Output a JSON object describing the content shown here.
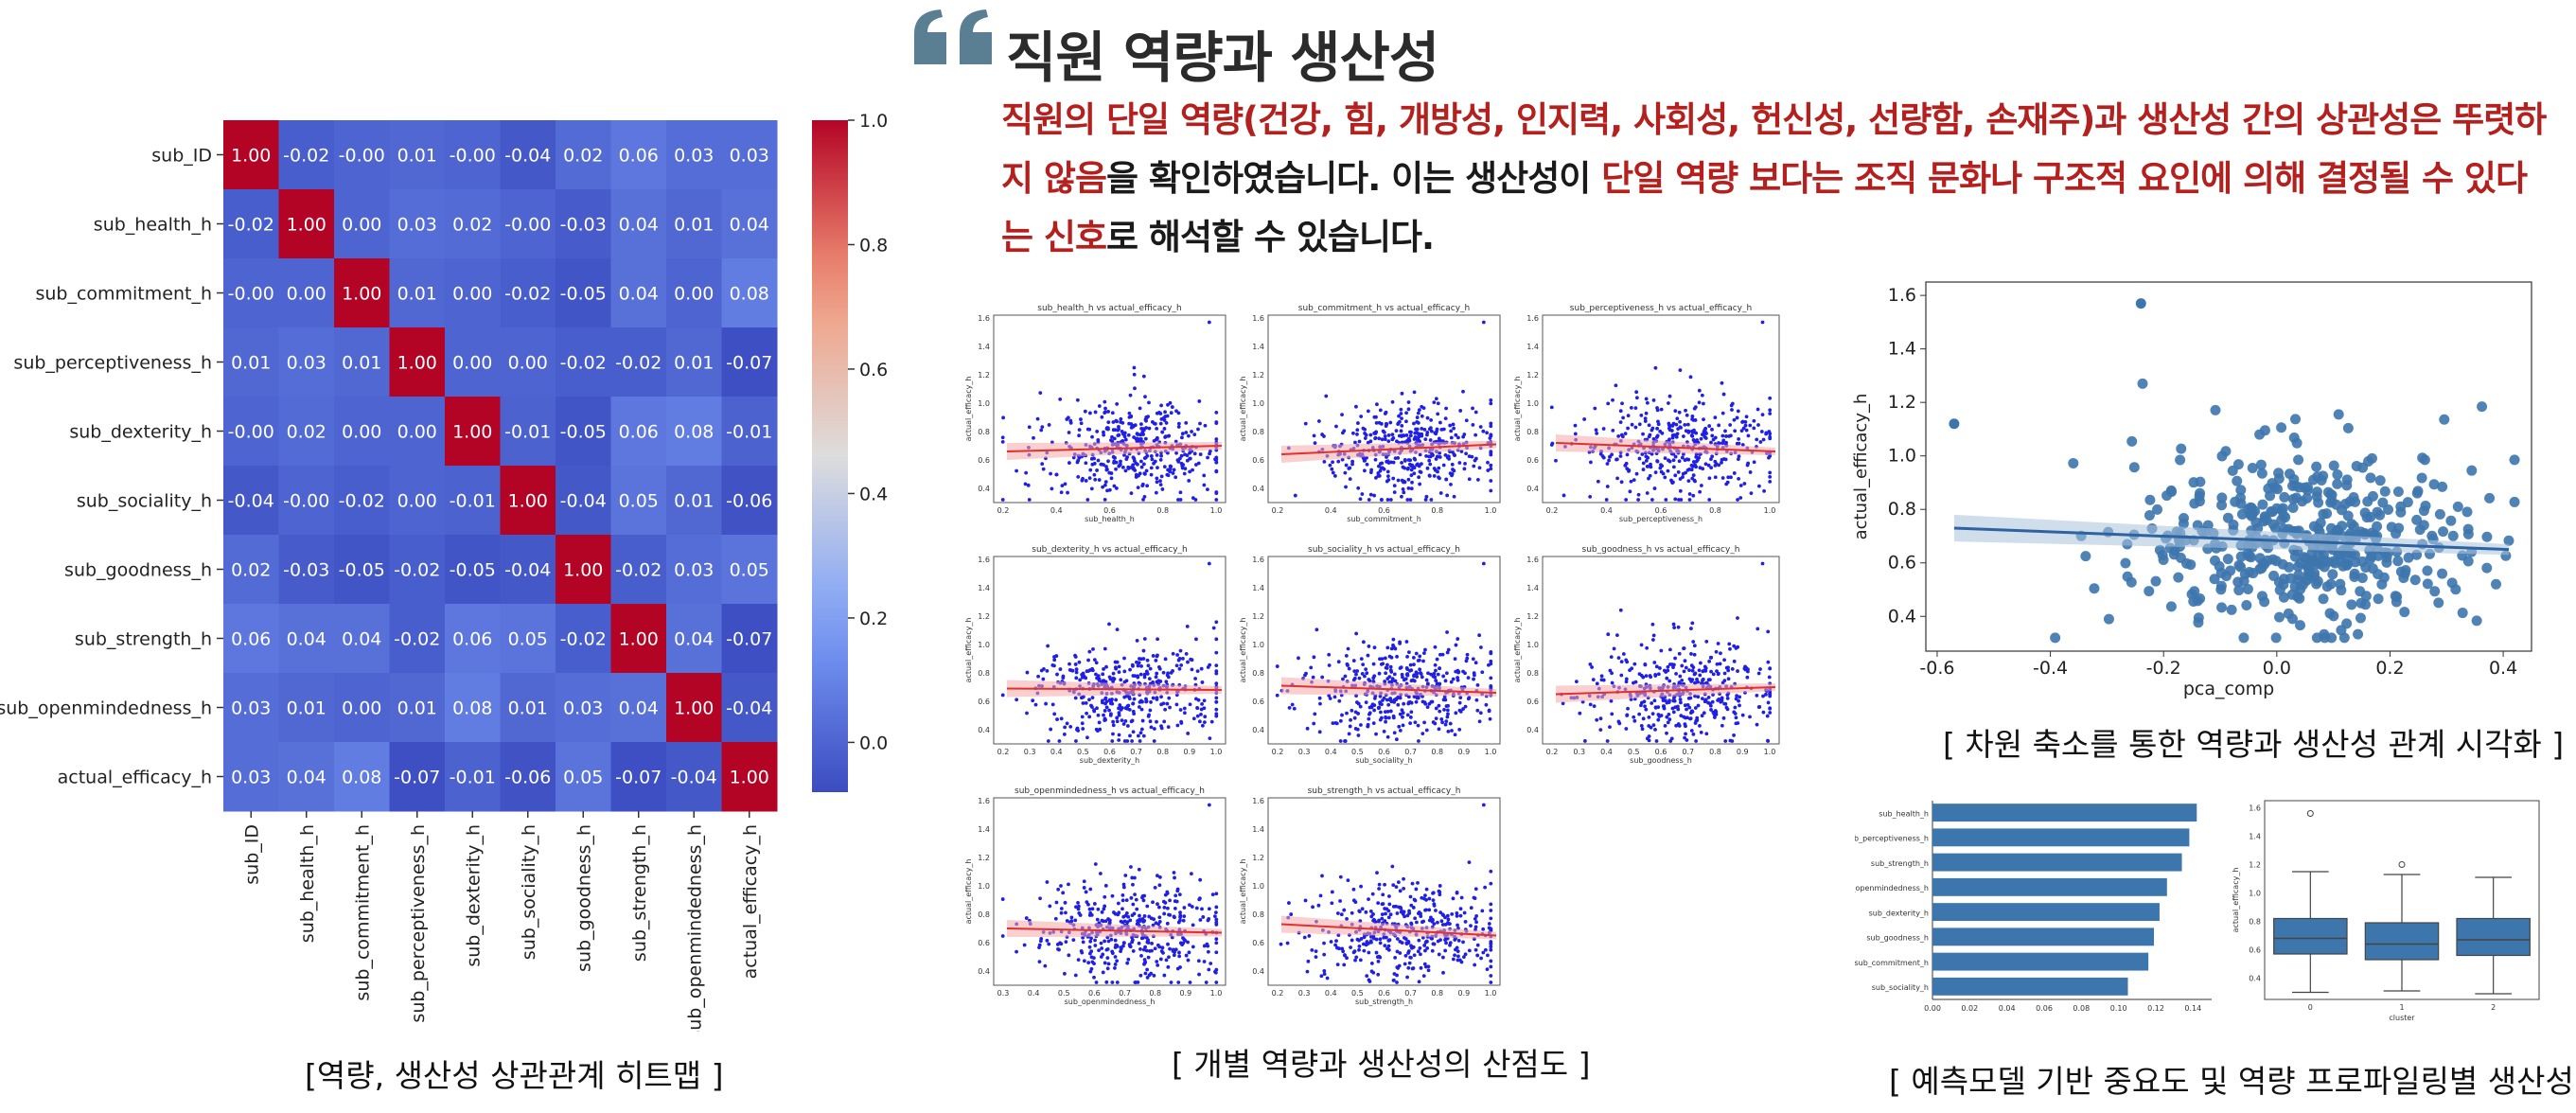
{
  "header": {
    "quote_icon": "double-quote-icon",
    "title": "직원 역량과 생산성",
    "description": [
      {
        "text": "직원의 단일 역량(건강, 힘, 개방성, 인지력, 사회성, 헌신성, 선량함, 손재주)과 생산성 간의 상관성은 뚜렷하지 않음",
        "highlight": true
      },
      {
        "text": "을 확인하였습니다. 이는 생산성이 ",
        "highlight": false
      },
      {
        "text": "단일 역량 보다는 조직 문화나 구조적 요인에 의해 결정될 수 있다는 신호",
        "highlight": true
      },
      {
        "text": "로 해석할 수 있습니다.",
        "highlight": false
      }
    ]
  },
  "captions": {
    "heatmap": "[역량, 생산성 상관관계 히트맵 ]",
    "scatter_grid": "[ 개별 역량과 생산성의 산점도 ]",
    "pca": "[ 차원 축소를 통한 역량과 생산성 관계 시각화 ]",
    "importance": "[ 예측모델 기반 중요도 및 역량 프로파일링별 생산성 확인]"
  },
  "colors": {
    "accent_red": "#b3201d",
    "quote_icon": "#5a7f93",
    "scatter_blue": "#1f1fe6",
    "steel_blue": "#3d76ad",
    "fit_red": "#e03030"
  },
  "chart_data": [
    {
      "type": "heatmap",
      "labels": [
        "sub_ID",
        "sub_health_h",
        "sub_commitment_h",
        "sub_perceptiveness_h",
        "sub_dexterity_h",
        "sub_sociality_h",
        "sub_goodness_h",
        "sub_strength_h",
        "sub_openmindedness_h",
        "actual_efficacy_h"
      ],
      "matrix": [
        [
          1.0,
          -0.02,
          -0.0,
          0.01,
          -0.0,
          -0.04,
          0.02,
          0.06,
          0.03,
          0.03
        ],
        [
          -0.02,
          1.0,
          0.0,
          0.03,
          0.02,
          -0.0,
          -0.03,
          0.04,
          0.01,
          0.04
        ],
        [
          -0.0,
          0.0,
          1.0,
          0.01,
          0.0,
          -0.02,
          -0.05,
          0.04,
          0.0,
          0.08
        ],
        [
          0.01,
          0.03,
          0.01,
          1.0,
          0.0,
          0.0,
          -0.02,
          -0.02,
          0.01,
          -0.07
        ],
        [
          -0.0,
          0.02,
          0.0,
          0.0,
          1.0,
          -0.01,
          -0.05,
          0.06,
          0.08,
          -0.01
        ],
        [
          -0.04,
          -0.0,
          -0.02,
          0.0,
          -0.01,
          1.0,
          -0.04,
          0.05,
          0.01,
          -0.06
        ],
        [
          0.02,
          -0.03,
          -0.05,
          -0.02,
          -0.05,
          -0.04,
          1.0,
          -0.02,
          0.03,
          0.05
        ],
        [
          0.06,
          0.04,
          0.04,
          -0.02,
          0.06,
          0.05,
          -0.02,
          1.0,
          0.04,
          -0.07
        ],
        [
          0.03,
          0.01,
          0.0,
          0.01,
          0.08,
          0.01,
          0.03,
          0.04,
          1.0,
          -0.04
        ],
        [
          0.03,
          0.04,
          0.08,
          -0.07,
          -0.01,
          -0.06,
          0.05,
          -0.07,
          -0.04,
          1.0
        ]
      ],
      "matrix_text": [
        [
          "1.00",
          "-0.02",
          "-0.00",
          "0.01",
          "-0.00",
          "-0.04",
          "0.02",
          "0.06",
          "0.03",
          "0.03"
        ],
        [
          "-0.02",
          "1.00",
          "0.00",
          "0.03",
          "0.02",
          "-0.00",
          "-0.03",
          "0.04",
          "0.01",
          "0.04"
        ],
        [
          "-0.00",
          "0.00",
          "1.00",
          "0.01",
          "0.00",
          "-0.02",
          "-0.05",
          "0.04",
          "0.00",
          "0.08"
        ],
        [
          "0.01",
          "0.03",
          "0.01",
          "1.00",
          "0.00",
          "0.00",
          "-0.02",
          "-0.02",
          "0.01",
          "-0.07"
        ],
        [
          "-0.00",
          "0.02",
          "0.00",
          "0.00",
          "1.00",
          "-0.01",
          "-0.05",
          "0.06",
          "0.08",
          "-0.01"
        ],
        [
          "-0.04",
          "-0.00",
          "-0.02",
          "0.00",
          "-0.01",
          "1.00",
          "-0.04",
          "0.05",
          "0.01",
          "-0.06"
        ],
        [
          "0.02",
          "-0.03",
          "-0.05",
          "-0.02",
          "-0.05",
          "-0.04",
          "1.00",
          "-0.02",
          "0.03",
          "0.05"
        ],
        [
          "0.06",
          "0.04",
          "0.04",
          "-0.02",
          "0.06",
          "0.05",
          "-0.02",
          "1.00",
          "0.04",
          "-0.07"
        ],
        [
          "0.03",
          "0.01",
          "0.00",
          "0.01",
          "0.08",
          "0.01",
          "0.03",
          "0.04",
          "1.00",
          "-0.04"
        ],
        [
          "0.03",
          "0.04",
          "0.08",
          "-0.07",
          "-0.01",
          "-0.06",
          "0.05",
          "-0.07",
          "-0.04",
          "1.00"
        ]
      ],
      "colorbar_ticks": [
        "1.0",
        "0.8",
        "0.6",
        "0.4",
        "0.2",
        "0.0"
      ],
      "colorbar_range": [
        -0.08,
        1.0
      ],
      "colormap": "coolwarm"
    },
    {
      "type": "scatter",
      "subplots": [
        {
          "title": "sub_health_h vs actual_efficacy_h",
          "xlabel": "sub_health_h",
          "ylabel": "actual_efficacy_h",
          "xticks": [
            "0.2",
            "0.4",
            "0.6",
            "0.8",
            "1.0"
          ],
          "fit": [
            0.66,
            0.7
          ]
        },
        {
          "title": "sub_commitment_h vs actual_efficacy_h",
          "xlabel": "sub_commitment_h",
          "ylabel": "actual_efficacy_h",
          "xticks": [
            "0.2",
            "0.4",
            "0.6",
            "0.8",
            "1.0"
          ],
          "fit": [
            0.64,
            0.71
          ]
        },
        {
          "title": "sub_perceptiveness_h vs actual_efficacy_h",
          "xlabel": "sub_perceptiveness_h",
          "ylabel": "actual_efficacy_h",
          "xticks": [
            "0.2",
            "0.4",
            "0.6",
            "0.8",
            "1.0"
          ],
          "fit": [
            0.72,
            0.66
          ]
        },
        {
          "title": "sub_dexterity_h vs actual_efficacy_h",
          "xlabel": "sub_dexterity_h",
          "ylabel": "actual_efficacy_h",
          "xticks": [
            "0.2",
            "0.3",
            "0.4",
            "0.5",
            "0.6",
            "0.7",
            "0.8",
            "0.9",
            "1.0"
          ],
          "fit": [
            0.69,
            0.68
          ]
        },
        {
          "title": "sub_sociality_h vs actual_efficacy_h",
          "xlabel": "sub_sociality_h",
          "ylabel": "actual_efficacy_h",
          "xticks": [
            "0.2",
            "0.3",
            "0.4",
            "0.5",
            "0.6",
            "0.7",
            "0.8",
            "0.9",
            "1.0"
          ],
          "fit": [
            0.71,
            0.66
          ]
        },
        {
          "title": "sub_goodness_h vs actual_efficacy_h",
          "xlabel": "sub_goodness_h",
          "ylabel": "actual_efficacy_h",
          "xticks": [
            "0.2",
            "0.3",
            "0.4",
            "0.5",
            "0.6",
            "0.7",
            "0.8",
            "0.9",
            "1.0"
          ],
          "fit": [
            0.65,
            0.7
          ]
        },
        {
          "title": "sub_openmindedness_h vs actual_efficacy_h",
          "xlabel": "sub_openmindedness_h",
          "ylabel": "actual_efficacy_h",
          "xticks": [
            "0.3",
            "0.4",
            "0.5",
            "0.6",
            "0.7",
            "0.8",
            "0.9",
            "1.0"
          ],
          "fit": [
            0.7,
            0.67
          ]
        },
        {
          "title": "sub_strength_h vs actual_efficacy_h",
          "xlabel": "sub_strength_h",
          "ylabel": "actual_efficacy_h",
          "xticks": [
            "0.2",
            "0.3",
            "0.4",
            "0.5",
            "0.6",
            "0.7",
            "0.8",
            "0.9",
            "1.0"
          ],
          "fit": [
            0.73,
            0.65
          ]
        }
      ],
      "yticks": [
        "0.4",
        "0.6",
        "0.8",
        "1.0",
        "1.2",
        "1.4",
        "1.6"
      ],
      "ylim": [
        0.3,
        1.62
      ]
    },
    {
      "type": "scatter",
      "xlabel": "pca_comp",
      "ylabel": "actual_efficacy_h",
      "xlim": [
        -0.62,
        0.45
      ],
      "ylim": [
        0.27,
        1.65
      ],
      "xticks": [
        -0.6,
        -0.4,
        -0.2,
        0.0,
        0.2,
        0.4
      ],
      "yticks": [
        0.4,
        0.6,
        0.8,
        1.0,
        1.2,
        1.4,
        1.6
      ],
      "outlier": [
        -0.24,
        1.57
      ],
      "fit": {
        "x": [
          -0.57,
          0.41
        ],
        "y": [
          0.73,
          0.65
        ]
      }
    },
    {
      "type": "bar",
      "orientation": "horizontal",
      "categories": [
        "sub_health_h",
        "sub_perceptiveness_h",
        "sub_strength_h",
        "sub_openmindedness_h",
        "sub_dexterity_h",
        "sub_goodness_h",
        "sub_commitment_h",
        "sub_sociality_h"
      ],
      "values": [
        0.142,
        0.138,
        0.134,
        0.126,
        0.122,
        0.119,
        0.116,
        0.105
      ],
      "xticks": [
        "0.00",
        "0.02",
        "0.04",
        "0.06",
        "0.08",
        "0.10",
        "0.12",
        "0.14"
      ],
      "xlim": [
        0,
        0.15
      ]
    },
    {
      "type": "box",
      "xlabel": "cluster",
      "ylabel": "actual_efficacy_h",
      "categories": [
        "0",
        "1",
        "2"
      ],
      "yticks": [
        "0.4",
        "0.6",
        "0.8",
        "1.0",
        "1.2",
        "1.4",
        "1.6"
      ],
      "ylim": [
        0.25,
        1.65
      ],
      "boxes": [
        {
          "whisker_low": 0.3,
          "q1": 0.57,
          "median": 0.68,
          "q3": 0.82,
          "whisker_high": 1.15,
          "outliers": [
            1.56
          ]
        },
        {
          "whisker_low": 0.31,
          "q1": 0.53,
          "median": 0.64,
          "q3": 0.79,
          "whisker_high": 1.13,
          "outliers": [
            1.2
          ]
        },
        {
          "whisker_low": 0.29,
          "q1": 0.56,
          "median": 0.67,
          "q3": 0.82,
          "whisker_high": 1.11,
          "outliers": []
        }
      ]
    }
  ]
}
